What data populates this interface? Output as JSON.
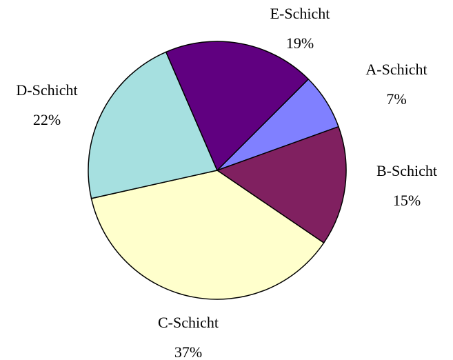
{
  "chart_data": {
    "type": "pie",
    "categories": [
      "A-Schicht",
      "B-Schicht",
      "C-Schicht",
      "D-Schicht",
      "E-Schicht"
    ],
    "values": [
      7,
      15,
      37,
      22,
      19
    ],
    "value_labels": [
      "7%",
      "15%",
      "37%",
      "22%",
      "19%"
    ],
    "colors": [
      "#8080ff",
      "#802060",
      "#ffffcc",
      "#a6e0e0",
      "#600080"
    ]
  }
}
